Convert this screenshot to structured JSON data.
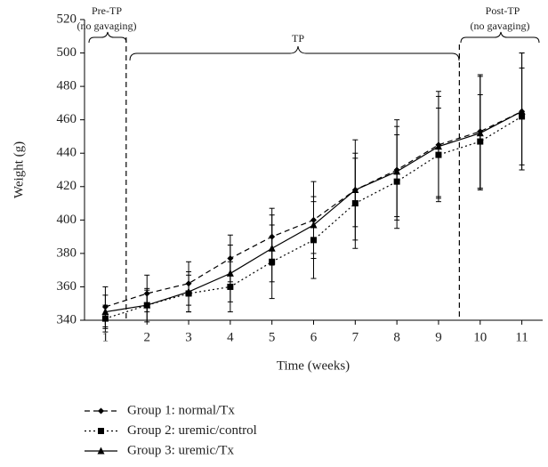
{
  "chart_data": {
    "type": "line",
    "y_label": "Weight (g)",
    "x_label": "Time (weeks)",
    "x": [
      1,
      2,
      3,
      4,
      5,
      6,
      7,
      8,
      9,
      10,
      11
    ],
    "xlim": [
      0.5,
      11.5
    ],
    "xticks": [
      1,
      2,
      3,
      4,
      5,
      6,
      7,
      8,
      9,
      10,
      11
    ],
    "ylim": [
      340,
      520
    ],
    "yticks": [
      340,
      360,
      380,
      400,
      420,
      440,
      460,
      480,
      500,
      520
    ],
    "phase_boundaries": [
      1.5,
      9.5
    ],
    "annotations": [
      "Pre-TP",
      "(no gavaging)",
      "TP",
      "Post-TP",
      "(no gavaging)"
    ],
    "series": [
      {
        "name": "Group 1: normal/Tx",
        "color": "#000000",
        "dash": "6,4",
        "marker": "diamond",
        "values": [
          348,
          356,
          362,
          377,
          390,
          400,
          418,
          430,
          445,
          453,
          465
        ],
        "errors": [
          12,
          11,
          13,
          14,
          17,
          23,
          30,
          30,
          32,
          34,
          35
        ]
      },
      {
        "name": "Group 2: uremic/control",
        "color": "#000000",
        "dash": "2,3",
        "marker": "square",
        "values": [
          341,
          349,
          356,
          360,
          375,
          388,
          410,
          423,
          439,
          447,
          462
        ],
        "errors": [
          8,
          9,
          11,
          15,
          22,
          23,
          27,
          28,
          28,
          28,
          29
        ]
      },
      {
        "name": "Group 3: uremic/Tx",
        "color": "#000000",
        "dash": "none",
        "marker": "triangle",
        "values": [
          345,
          349,
          357,
          368,
          383,
          397,
          418,
          429,
          444,
          452,
          465
        ],
        "errors": [
          10,
          10,
          12,
          17,
          20,
          17,
          22,
          27,
          30,
          34,
          35
        ]
      }
    ]
  }
}
